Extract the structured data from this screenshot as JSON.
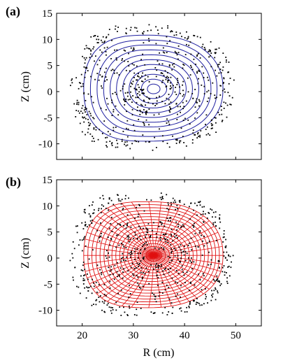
{
  "chart_data": [
    {
      "panel_label": "(a)",
      "type": "scatter",
      "title": "",
      "xlabel": "",
      "ylabel": "Z (cm)",
      "xlim": [
        15,
        55
      ],
      "ylim": [
        -13,
        15
      ],
      "x_ticks": [
        20,
        30,
        40,
        50
      ],
      "x_tick_labels_shown": false,
      "y_ticks": [
        -10,
        -5,
        0,
        5,
        10,
        15
      ],
      "y_tick_labels": [
        "-10",
        "-5",
        "0",
        "5",
        "10",
        "15"
      ],
      "overlay": "nested flux-surface contours",
      "overlay_color": "#1f1fa0",
      "points_color": "#000000",
      "magnetic_axis": {
        "R": 33,
        "Z": 0.5
      },
      "boundary": {
        "R_inner": 20.3,
        "R_outer": 47.5,
        "Z_top": 10.8,
        "Z_bottom": -9.5
      }
    },
    {
      "panel_label": "(b)",
      "type": "scatter",
      "title": "",
      "xlabel": "R (cm)",
      "ylabel": "Z (cm)",
      "xlim": [
        15,
        55
      ],
      "ylim": [
        -13,
        15
      ],
      "x_ticks": [
        20,
        30,
        40,
        50
      ],
      "x_tick_labels": [
        "20",
        "30",
        "40",
        "50"
      ],
      "x_tick_labels_shown": true,
      "y_ticks": [
        -10,
        -5,
        0,
        5,
        10,
        15
      ],
      "y_tick_labels": [
        "-10",
        "-5",
        "0",
        "5",
        "10",
        "15"
      ],
      "overlay": "curvilinear flux-coordinate grid",
      "overlay_color": "#e01010",
      "points_color": "#000000",
      "magnetic_axis": {
        "R": 33,
        "Z": 0.5
      },
      "boundary": {
        "R_inner": 20.3,
        "R_outer": 47.5,
        "Z_top": 10.8,
        "Z_bottom": -9.5
      }
    }
  ]
}
